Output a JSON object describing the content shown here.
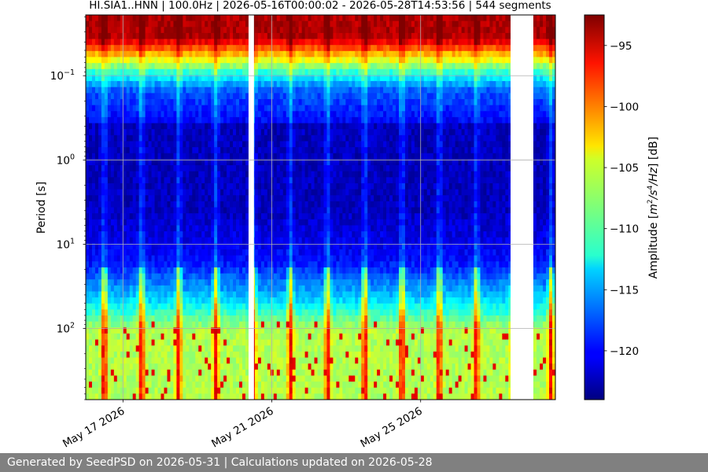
{
  "chart_data": {
    "type": "heatmap",
    "title": "HI.SIA1..HNN | 100.0Hz | 2026-05-16T00:00:02 - 2026-05-28T14:53:56 | 544 segments",
    "ylabel": "Period [s]",
    "y_scale": "log",
    "y_inverted": true,
    "y_range_seconds": [
      0.019,
      700
    ],
    "y_tick_values": [
      0.1,
      1,
      10,
      100
    ],
    "y_tick_labels": [
      "10",
      "10",
      "10",
      "10"
    ],
    "y_tick_exponents": [
      "−1",
      "0",
      "1",
      "2"
    ],
    "x_range": [
      "2026-05-16T00:00:02",
      "2026-05-28T14:53:56"
    ],
    "x_tick_dates": [
      "2026-05-17",
      "2026-05-21",
      "2026-05-25"
    ],
    "x_tick_labels": [
      "May 17 2026",
      "May 21 2026",
      "May 25 2026"
    ],
    "gaps": [
      [
        "2026-05-20T09:00:00",
        "2026-05-20T12:30:00"
      ],
      [
        "2026-05-27T10:00:00",
        "2026-05-28T00:40:00"
      ]
    ],
    "daily_noise_peaks_hour": 12,
    "colorbar": {
      "colormap": "jet",
      "range": [
        -124,
        -92.5
      ],
      "ticks": [
        -95,
        -100,
        -105,
        -110,
        -115,
        -120
      ],
      "tick_labels": [
        "−95",
        "−100",
        "−105",
        "−110",
        "−115",
        "−120"
      ],
      "label": "Amplitude [m²/s⁴/Hz] [dB]",
      "label_prefix": "Amplitude [",
      "label_m": "m",
      "label_exp2": "2",
      "label_slash1": "/s",
      "label_exp4": "4",
      "label_slash2": "/Hz",
      "label_suffix": "] [dB]"
    },
    "grid": true
  },
  "footer": {
    "text": "Generated by SeedPSD on 2026-05-31 | Calculations updated on 2026-05-28"
  }
}
